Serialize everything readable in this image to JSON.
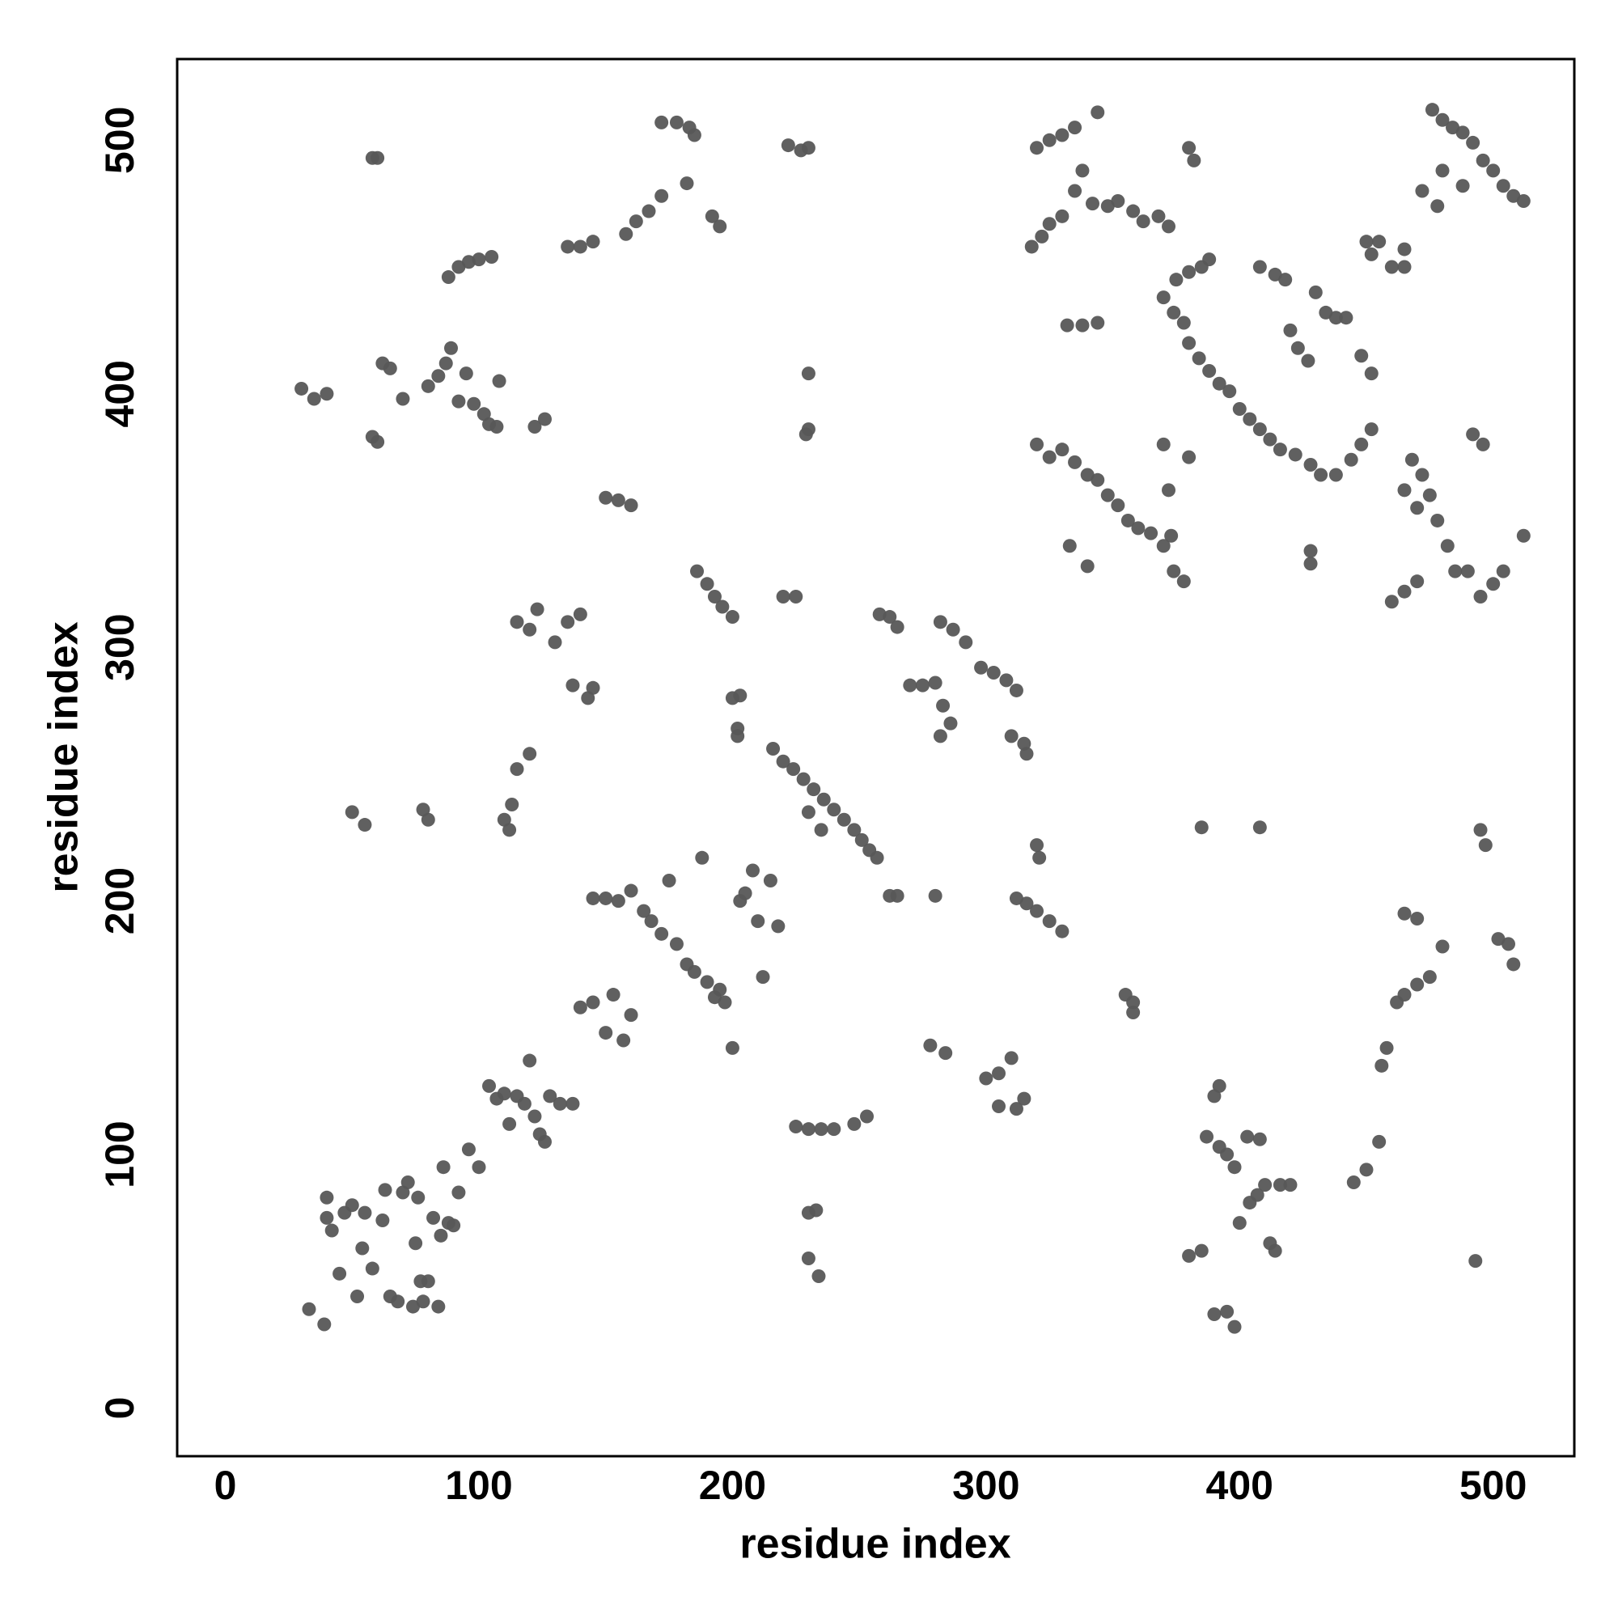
{
  "chart_data": {
    "type": "scatter",
    "x_label": "residue index",
    "y_label": "residue index",
    "color": "#575757",
    "xlim": [
      -19,
      532
    ],
    "ylim": [
      -19,
      532
    ],
    "xticks": [
      0,
      100,
      200,
      300,
      400,
      500
    ],
    "yticks": [
      0,
      100,
      200,
      300,
      400,
      500
    ],
    "x": [
      33,
      39,
      40,
      40,
      42,
      45,
      47,
      50,
      52,
      54,
      55,
      58,
      62,
      63,
      65,
      68,
      70,
      72,
      74,
      75,
      76,
      77,
      78,
      80,
      82,
      84,
      85,
      86,
      88,
      90,
      92,
      96,
      100,
      104,
      107,
      110,
      112,
      115,
      118,
      120,
      122,
      124,
      126,
      128,
      132,
      137,
      140,
      145,
      150,
      153,
      157,
      160,
      155,
      160,
      165,
      168,
      172,
      175,
      178,
      182,
      185,
      188,
      190,
      193,
      195,
      197,
      200,
      203,
      205,
      208,
      210,
      212,
      215,
      218,
      145,
      150,
      216,
      220,
      224,
      228,
      232,
      236,
      240,
      244,
      248,
      251,
      254,
      257,
      230,
      235,
      225,
      230,
      235,
      240,
      248,
      253,
      230,
      233,
      230,
      234,
      278,
      284,
      300,
      305,
      310,
      312,
      315,
      305,
      262,
      265,
      280,
      312,
      316,
      320,
      325,
      330,
      320,
      321,
      258,
      262,
      265,
      270,
      275,
      280,
      283,
      286,
      282,
      282,
      287,
      292,
      298,
      303,
      308,
      312,
      310,
      315,
      316,
      200,
      203,
      202,
      202,
      186,
      190,
      193,
      196,
      200,
      220,
      225,
      110,
      112,
      113,
      115,
      120,
      115,
      120,
      123,
      130,
      135,
      140,
      137,
      143,
      145,
      150,
      155,
      160,
      50,
      55,
      78,
      80,
      30,
      35,
      40,
      58,
      60,
      62,
      65,
      70,
      80,
      84,
      87,
      89,
      92,
      95,
      98,
      102,
      104,
      107,
      108,
      122,
      126,
      58,
      60,
      88,
      92,
      96,
      100,
      105,
      135,
      140,
      145,
      158,
      162,
      167,
      172,
      182,
      192,
      195,
      172,
      178,
      183,
      185,
      222,
      227,
      230,
      230,
      230,
      229,
      380,
      385,
      390,
      395,
      398,
      390,
      392,
      387,
      392,
      395,
      398,
      400,
      404,
      407,
      410,
      412,
      414,
      416,
      403,
      408,
      420,
      445,
      450,
      455,
      456,
      458,
      462,
      465,
      470,
      475,
      480,
      465,
      470,
      493,
      385,
      408,
      495,
      497,
      502,
      506,
      508,
      355,
      358,
      358,
      318,
      322,
      325,
      330,
      335,
      338,
      342,
      348,
      352,
      358,
      362,
      368,
      372,
      320,
      325,
      330,
      335,
      344,
      380,
      382,
      332,
      338,
      344,
      370,
      374,
      378,
      380,
      384,
      388,
      392,
      396,
      400,
      404,
      408,
      412,
      416,
      422,
      428,
      432,
      438,
      444,
      448,
      452,
      375,
      380,
      385,
      388,
      408,
      414,
      418,
      420,
      423,
      427,
      430,
      434,
      438,
      442,
      448,
      452,
      450,
      452,
      455,
      460,
      465,
      465,
      320,
      325,
      330,
      335,
      340,
      344,
      348,
      352,
      356,
      360,
      365,
      370,
      374,
      378,
      372,
      370,
      380,
      373,
      333,
      340,
      428,
      428,
      476,
      480,
      484,
      488,
      492,
      496,
      500,
      504,
      508,
      512,
      472,
      478,
      480,
      488,
      460,
      465,
      470,
      468,
      472,
      475,
      478,
      482,
      485,
      490,
      495,
      500,
      504,
      512,
      465,
      470,
      492,
      496
    ],
    "values": [
      39,
      33,
      83,
      75,
      70,
      53,
      77,
      80,
      44,
      63,
      77,
      55,
      74,
      86,
      44,
      42,
      85,
      89,
      40,
      65,
      83,
      50,
      42,
      50,
      75,
      40,
      68,
      95,
      73,
      72,
      85,
      102,
      95,
      127,
      122,
      124,
      112,
      123,
      120,
      137,
      115,
      108,
      105,
      123,
      120,
      120,
      158,
      160,
      148,
      163,
      145,
      155,
      200,
      204,
      196,
      192,
      187,
      208,
      183,
      175,
      172,
      217,
      168,
      162,
      165,
      160,
      142,
      200,
      203,
      212,
      192,
      170,
      208,
      190,
      201,
      201,
      260,
      255,
      252,
      248,
      244,
      240,
      236,
      232,
      228,
      224,
      220,
      217,
      235,
      228,
      111,
      110,
      110,
      110,
      112,
      115,
      77,
      78,
      59,
      52,
      143,
      140,
      130,
      132,
      138,
      118,
      122,
      119,
      202,
      202,
      202,
      201,
      199,
      196,
      192,
      188,
      222,
      217,
      313,
      312,
      308,
      285,
      285,
      286,
      277,
      270,
      265,
      310,
      307,
      302,
      292,
      290,
      287,
      283,
      265,
      262,
      258,
      280,
      281,
      268,
      265,
      330,
      325,
      320,
      316,
      312,
      320,
      320,
      232,
      228,
      238,
      252,
      258,
      310,
      307,
      315,
      302,
      310,
      313,
      285,
      280,
      284,
      359,
      358,
      356,
      235,
      230,
      236,
      232,
      402,
      398,
      400,
      383,
      381,
      412,
      410,
      398,
      403,
      407,
      412,
      418,
      397,
      408,
      396,
      392,
      388,
      387,
      405,
      387,
      390,
      493,
      493,
      446,
      450,
      452,
      453,
      454,
      458,
      458,
      460,
      463,
      468,
      472,
      478,
      483,
      470,
      466,
      507,
      507,
      505,
      502,
      498,
      496,
      497,
      408,
      386,
      384,
      60,
      62,
      37,
      38,
      32,
      123,
      127,
      107,
      103,
      100,
      95,
      73,
      81,
      84,
      88,
      65,
      62,
      88,
      107,
      106,
      88,
      89,
      94,
      105,
      135,
      142,
      160,
      163,
      167,
      170,
      182,
      195,
      193,
      58,
      229,
      229,
      228,
      222,
      185,
      183,
      175,
      163,
      156,
      160,
      458,
      462,
      467,
      470,
      480,
      488,
      475,
      474,
      476,
      472,
      468,
      470,
      466,
      497,
      500,
      502,
      505,
      511,
      497,
      492,
      427,
      427,
      428,
      438,
      432,
      428,
      420,
      414,
      409,
      404,
      401,
      394,
      390,
      386,
      382,
      378,
      376,
      372,
      368,
      368,
      374,
      380,
      386,
      445,
      448,
      450,
      453,
      450,
      447,
      445,
      425,
      418,
      413,
      440,
      432,
      430,
      430,
      415,
      408,
      460,
      455,
      460,
      450,
      450,
      457,
      380,
      375,
      378,
      373,
      368,
      366,
      360,
      356,
      350,
      347,
      345,
      340,
      330,
      326,
      362,
      380,
      375,
      344,
      340,
      332,
      338,
      333,
      512,
      508,
      505,
      503,
      499,
      492,
      488,
      482,
      478,
      476,
      480,
      474,
      488,
      482,
      318,
      322,
      326,
      374,
      368,
      360,
      350,
      340,
      330,
      330,
      320,
      325,
      330,
      344,
      362,
      355,
      384,
      380
    ]
  }
}
